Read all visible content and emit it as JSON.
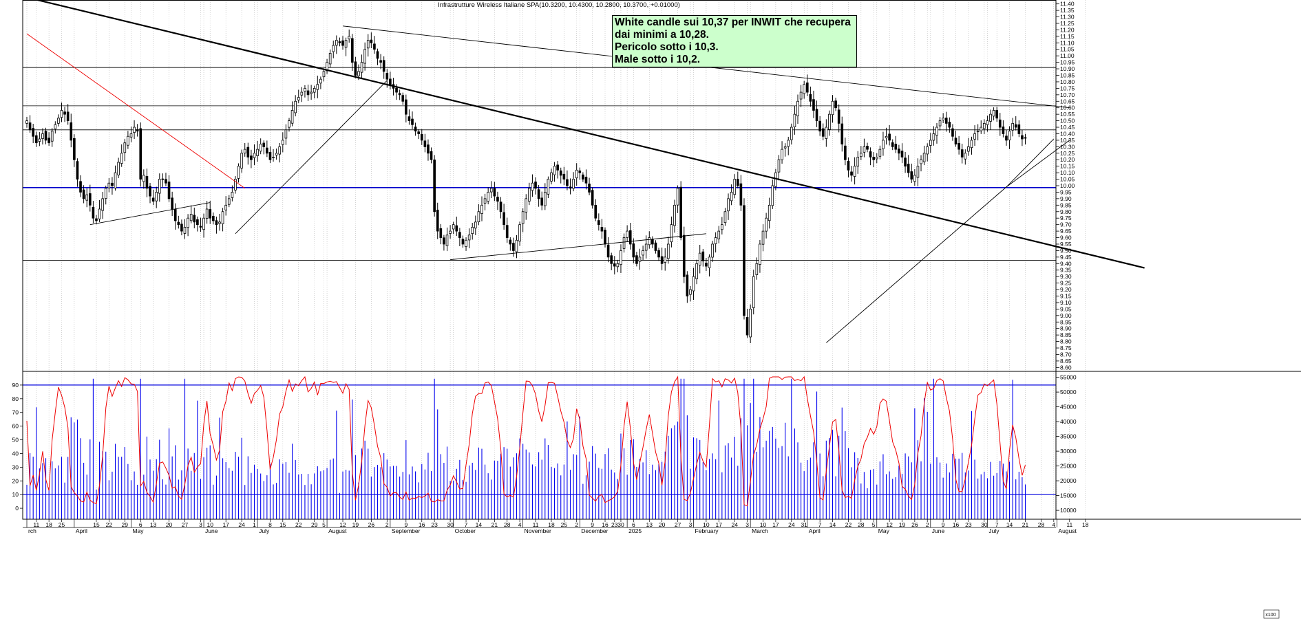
{
  "chart_data": [
    {
      "type": "candlestick",
      "title": "Infrastrutture Wireless Italiane SPA(10.3200, 10.4300, 10.2800, 10.3700, +0.01000)",
      "yticks": [
        "11.40",
        "11.35",
        "11.30",
        "11.25",
        "11.20",
        "11.15",
        "11.10",
        "11.05",
        "11.00",
        "10.95",
        "10.90",
        "10.85",
        "10.80",
        "10.75",
        "10.70",
        "10.65",
        "10.60",
        "10.55",
        "10.50",
        "10.45",
        "10.40",
        "10.35",
        "10.30",
        "10.25",
        "10.20",
        "10.15",
        "10.10",
        "10.05",
        "10.00",
        "9.95",
        "9.90",
        "9.85",
        "9.80",
        "9.75",
        "9.70",
        "9.65",
        "9.60",
        "9.55",
        "9.50",
        "9.45",
        "9.40",
        "9.35",
        "9.30",
        "9.25",
        "9.20",
        "9.15",
        "9.10",
        "9.05",
        "9.00",
        "8.95",
        "8.90",
        "8.85",
        "8.80",
        "8.75",
        "8.70",
        "8.65",
        "8.60"
      ],
      "ylim": [
        8.57,
        11.43
      ],
      "horizontal_levels": [
        10.91,
        10.615,
        10.43,
        9.985,
        9.425
      ],
      "support_level": 9.985,
      "trendlines": [
        {
          "from": [
            0,
            11.45
          ],
          "to": [
            345,
            9.42
          ]
        },
        {
          "from": [
            0,
            11.17
          ],
          "to": [
            69,
            9.98
          ]
        },
        {
          "from": [
            20,
            9.7
          ],
          "to": [
            58,
            9.87
          ]
        },
        {
          "from": [
            66,
            9.63
          ],
          "to": [
            114,
            10.81
          ]
        },
        {
          "from": [
            100,
            11.23
          ],
          "to": [
            330,
            10.6
          ]
        },
        {
          "from": [
            134,
            9.43
          ],
          "to": [
            215,
            9.63
          ]
        },
        {
          "from": [
            253,
            8.79
          ],
          "to": [
            310,
            9.99
          ]
        },
        {
          "from": [
            310,
            9.99
          ],
          "to": [
            325,
            10.36
          ]
        },
        {
          "from": [
            310,
            9.99
          ],
          "to": [
            330,
            10.35
          ]
        }
      ],
      "annotation": [
        "White candle sui 10,37 per INWIT che recupera",
        "dai minimi a 10,28.",
        "Pericolo sotto i 10,3.",
        "Male sotto i 10,2."
      ],
      "closes": [
        10.5,
        10.43,
        10.38,
        10.33,
        10.36,
        10.4,
        10.35,
        10.33,
        10.42,
        10.47,
        10.52,
        10.58,
        10.55,
        10.5,
        10.35,
        10.2,
        10.05,
        9.95,
        9.9,
        9.93,
        9.85,
        9.75,
        9.73,
        9.82,
        9.9,
        9.98,
        10.02,
        10.0,
        10.1,
        10.18,
        10.25,
        10.33,
        10.38,
        10.4,
        10.45,
        10.42,
        10.05,
        10.08,
        9.98,
        9.92,
        9.88,
        9.95,
        10.05,
        10.05,
        10.02,
        9.9,
        9.82,
        9.73,
        9.7,
        9.65,
        9.68,
        9.75,
        9.78,
        9.72,
        9.7,
        9.68,
        9.75,
        9.82,
        9.75,
        9.73,
        9.7,
        9.72,
        9.8,
        9.85,
        9.9,
        9.95,
        10.05,
        10.15,
        10.25,
        10.28,
        10.22,
        10.2,
        10.25,
        10.28,
        10.32,
        10.3,
        10.25,
        10.2,
        10.22,
        10.25,
        10.3,
        10.35,
        10.43,
        10.5,
        10.58,
        10.65,
        10.68,
        10.72,
        10.75,
        10.7,
        10.72,
        10.75,
        10.78,
        10.82,
        10.88,
        10.95,
        11.02,
        11.08,
        11.12,
        11.1,
        11.08,
        11.12,
        11.15,
        10.95,
        10.85,
        10.88,
        10.95,
        11.05,
        11.12,
        11.1,
        11.05,
        10.98,
        10.95,
        10.88,
        10.82,
        10.78,
        10.75,
        10.72,
        10.7,
        10.65,
        10.55,
        10.5,
        10.47,
        10.42,
        10.4,
        10.35,
        10.3,
        10.25,
        10.2,
        9.8,
        9.65,
        9.6,
        9.55,
        9.62,
        9.65,
        9.7,
        9.65,
        9.6,
        9.55,
        9.58,
        9.62,
        9.68,
        9.72,
        9.8,
        9.85,
        9.9,
        9.95,
        9.98,
        9.92,
        9.88,
        9.8,
        9.7,
        9.6,
        9.55,
        9.5,
        9.58,
        9.7,
        9.8,
        9.9,
        9.98,
        10.02,
        9.98,
        9.9,
        9.85,
        9.95,
        10.05,
        10.1,
        10.15,
        10.12,
        10.08,
        10.05,
        10.0,
        9.98,
        10.05,
        10.12,
        10.1,
        10.05,
        10.02,
        9.95,
        9.85,
        9.75,
        9.7,
        9.65,
        9.55,
        9.45,
        9.4,
        9.38,
        9.4,
        9.5,
        9.6,
        9.65,
        9.55,
        9.45,
        9.4,
        9.45,
        9.5,
        9.55,
        9.6,
        9.55,
        9.5,
        9.45,
        9.4,
        9.45,
        9.55,
        9.7,
        9.85,
        9.98,
        9.6,
        9.3,
        9.15,
        9.2,
        9.3,
        9.4,
        9.48,
        9.42,
        9.38,
        9.45,
        9.55,
        9.6,
        9.65,
        9.7,
        9.8,
        9.9,
        9.95,
        10.05,
        10.0,
        9.85,
        9.0,
        8.85,
        9.05,
        9.3,
        9.4,
        9.55,
        9.65,
        9.75,
        9.85,
        10.0,
        10.1,
        10.2,
        10.28,
        10.3,
        10.35,
        10.45,
        10.55,
        10.65,
        10.72,
        10.78,
        10.72,
        10.65,
        10.58,
        10.5,
        10.42,
        10.38,
        10.45,
        10.55,
        10.65,
        10.6,
        10.48,
        10.32,
        10.2,
        10.12,
        10.08,
        10.15,
        10.22,
        10.25,
        10.3,
        10.28,
        10.22,
        10.2,
        10.22,
        10.28,
        10.35,
        10.38,
        10.35,
        10.3,
        10.28,
        10.25,
        10.22,
        10.15,
        10.1,
        10.05,
        10.08,
        10.15,
        10.2,
        10.25,
        10.3,
        10.35,
        10.4,
        10.45,
        10.5,
        10.52,
        10.48,
        10.45,
        10.38,
        10.32,
        10.28,
        10.22,
        10.25,
        10.3,
        10.35,
        10.4,
        10.42,
        10.45,
        10.48,
        10.5,
        10.55,
        10.58,
        10.52,
        10.45,
        10.4,
        10.35,
        10.42,
        10.48,
        10.45,
        10.4,
        10.36,
        10.37
      ]
    },
    {
      "type": "bar+line",
      "yticks_left": [
        "90",
        "80",
        "70",
        "60",
        "50",
        "40",
        "30",
        "20",
        "10",
        "0"
      ],
      "ylim_left": [
        -8,
        100
      ],
      "yticks_right": [
        "55000",
        "50000",
        "45000",
        "40000",
        "35000",
        "30000",
        "25000",
        "20000",
        "15000",
        "10000"
      ],
      "ylim_right": [
        7000,
        57000
      ],
      "horizontal_levels": [
        90,
        10
      ],
      "indicator_name": "",
      "x_labels": [
        {
          "i": 0,
          "t": "rch"
        },
        {
          "i": 3,
          "t": "11"
        },
        {
          "i": 7,
          "t": "18"
        },
        {
          "i": 11,
          "t": "25"
        },
        {
          "i": 15,
          "t": "April"
        },
        {
          "i": 22,
          "t": "15"
        },
        {
          "i": 26,
          "t": "22"
        },
        {
          "i": 31,
          "t": "29"
        },
        {
          "i": 33,
          "t": "May"
        },
        {
          "i": 36,
          "t": "6"
        },
        {
          "i": 40,
          "t": "13"
        },
        {
          "i": 45,
          "t": "20"
        },
        {
          "i": 50,
          "t": "27"
        },
        {
          "i": 55,
          "t": "3"
        },
        {
          "i": 56,
          "t": "June"
        },
        {
          "i": 58,
          "t": "10"
        },
        {
          "i": 63,
          "t": "17"
        },
        {
          "i": 68,
          "t": "24"
        },
        {
          "i": 72,
          "t": "1"
        },
        {
          "i": 73,
          "t": "July"
        },
        {
          "i": 77,
          "t": "8"
        },
        {
          "i": 81,
          "t": "15"
        },
        {
          "i": 86,
          "t": "22"
        },
        {
          "i": 91,
          "t": "29"
        },
        {
          "i": 94,
          "t": "5"
        },
        {
          "i": 95,
          "t": "August"
        },
        {
          "i": 100,
          "t": "12"
        },
        {
          "i": 104,
          "t": "19"
        },
        {
          "i": 109,
          "t": "26"
        },
        {
          "i": 114,
          "t": "2"
        },
        {
          "i": 115,
          "t": "September"
        },
        {
          "i": 120,
          "t": "9"
        },
        {
          "i": 125,
          "t": "16"
        },
        {
          "i": 129,
          "t": "23"
        },
        {
          "i": 134,
          "t": "30"
        },
        {
          "i": 135,
          "t": "October"
        },
        {
          "i": 139,
          "t": "7"
        },
        {
          "i": 143,
          "t": "14"
        },
        {
          "i": 148,
          "t": "21"
        },
        {
          "i": 152,
          "t": "28"
        },
        {
          "i": 156,
          "t": "4"
        },
        {
          "i": 157,
          "t": "November"
        },
        {
          "i": 161,
          "t": "11"
        },
        {
          "i": 166,
          "t": "18"
        },
        {
          "i": 170,
          "t": "25"
        },
        {
          "i": 174,
          "t": "2"
        },
        {
          "i": 175,
          "t": "December"
        },
        {
          "i": 179,
          "t": "9"
        },
        {
          "i": 183,
          "t": "16"
        },
        {
          "i": 186,
          "t": "23"
        },
        {
          "i": 188,
          "t": "30"
        },
        {
          "i": 190,
          "t": "2025"
        },
        {
          "i": 192,
          "t": "6"
        },
        {
          "i": 197,
          "t": "13"
        },
        {
          "i": 201,
          "t": "20"
        },
        {
          "i": 206,
          "t": "27"
        },
        {
          "i": 210,
          "t": "3"
        },
        {
          "i": 211,
          "t": "February"
        },
        {
          "i": 215,
          "t": "10"
        },
        {
          "i": 219,
          "t": "17"
        },
        {
          "i": 224,
          "t": "24"
        },
        {
          "i": 228,
          "t": "3"
        },
        {
          "i": 229,
          "t": "March"
        },
        {
          "i": 233,
          "t": "10"
        },
        {
          "i": 237,
          "t": "17"
        },
        {
          "i": 242,
          "t": "24"
        },
        {
          "i": 246,
          "t": "31"
        },
        {
          "i": 247,
          "t": "April"
        },
        {
          "i": 251,
          "t": "7"
        },
        {
          "i": 255,
          "t": "14"
        },
        {
          "i": 260,
          "t": "22"
        },
        {
          "i": 264,
          "t": "28"
        },
        {
          "i": 268,
          "t": "5"
        },
        {
          "i": 269,
          "t": "May"
        },
        {
          "i": 273,
          "t": "12"
        },
        {
          "i": 277,
          "t": "19"
        },
        {
          "i": 281,
          "t": "26"
        },
        {
          "i": 285,
          "t": "2"
        },
        {
          "i": 286,
          "t": "June"
        },
        {
          "i": 290,
          "t": "9"
        },
        {
          "i": 294,
          "t": "16"
        },
        {
          "i": 298,
          "t": "23"
        },
        {
          "i": 303,
          "t": "30"
        },
        {
          "i": 304,
          "t": "July"
        },
        {
          "i": 307,
          "t": "7"
        },
        {
          "i": 311,
          "t": "14"
        },
        {
          "i": 316,
          "t": "21"
        },
        {
          "i": 321,
          "t": "28"
        },
        {
          "i": 325,
          "t": "4"
        },
        {
          "i": 326,
          "t": "August"
        },
        {
          "i": 330,
          "t": "11"
        },
        {
          "i": 335,
          "t": "18"
        }
      ],
      "corner_label": "x100"
    }
  ]
}
